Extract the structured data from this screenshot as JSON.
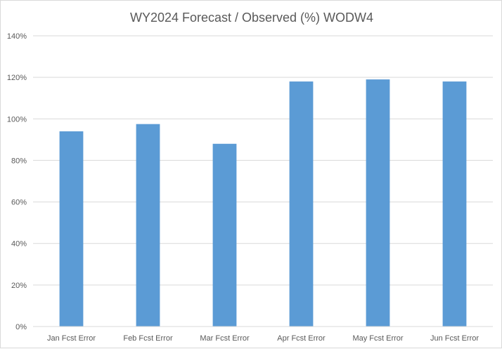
{
  "chart_data": {
    "type": "bar",
    "title": "WY2024 Forecast / Observed (%) WODW4",
    "categories": [
      "Jan Fcst Error",
      "Feb Fcst Error",
      "Mar Fcst Error",
      "Apr Fcst Error",
      "May Fcst Error",
      "Jun Fcst Error"
    ],
    "values": [
      94,
      97.5,
      88,
      118,
      119,
      118
    ],
    "ylim": [
      0,
      140
    ],
    "yticks": [
      0,
      20,
      40,
      60,
      80,
      100,
      120,
      140
    ],
    "ytick_labels": [
      "0%",
      "20%",
      "40%",
      "60%",
      "80%",
      "100%",
      "120%",
      "140%"
    ],
    "bar_color": "#5b9bd5",
    "grid_color": "#d9d9d9",
    "grid": true,
    "legend": "none"
  }
}
